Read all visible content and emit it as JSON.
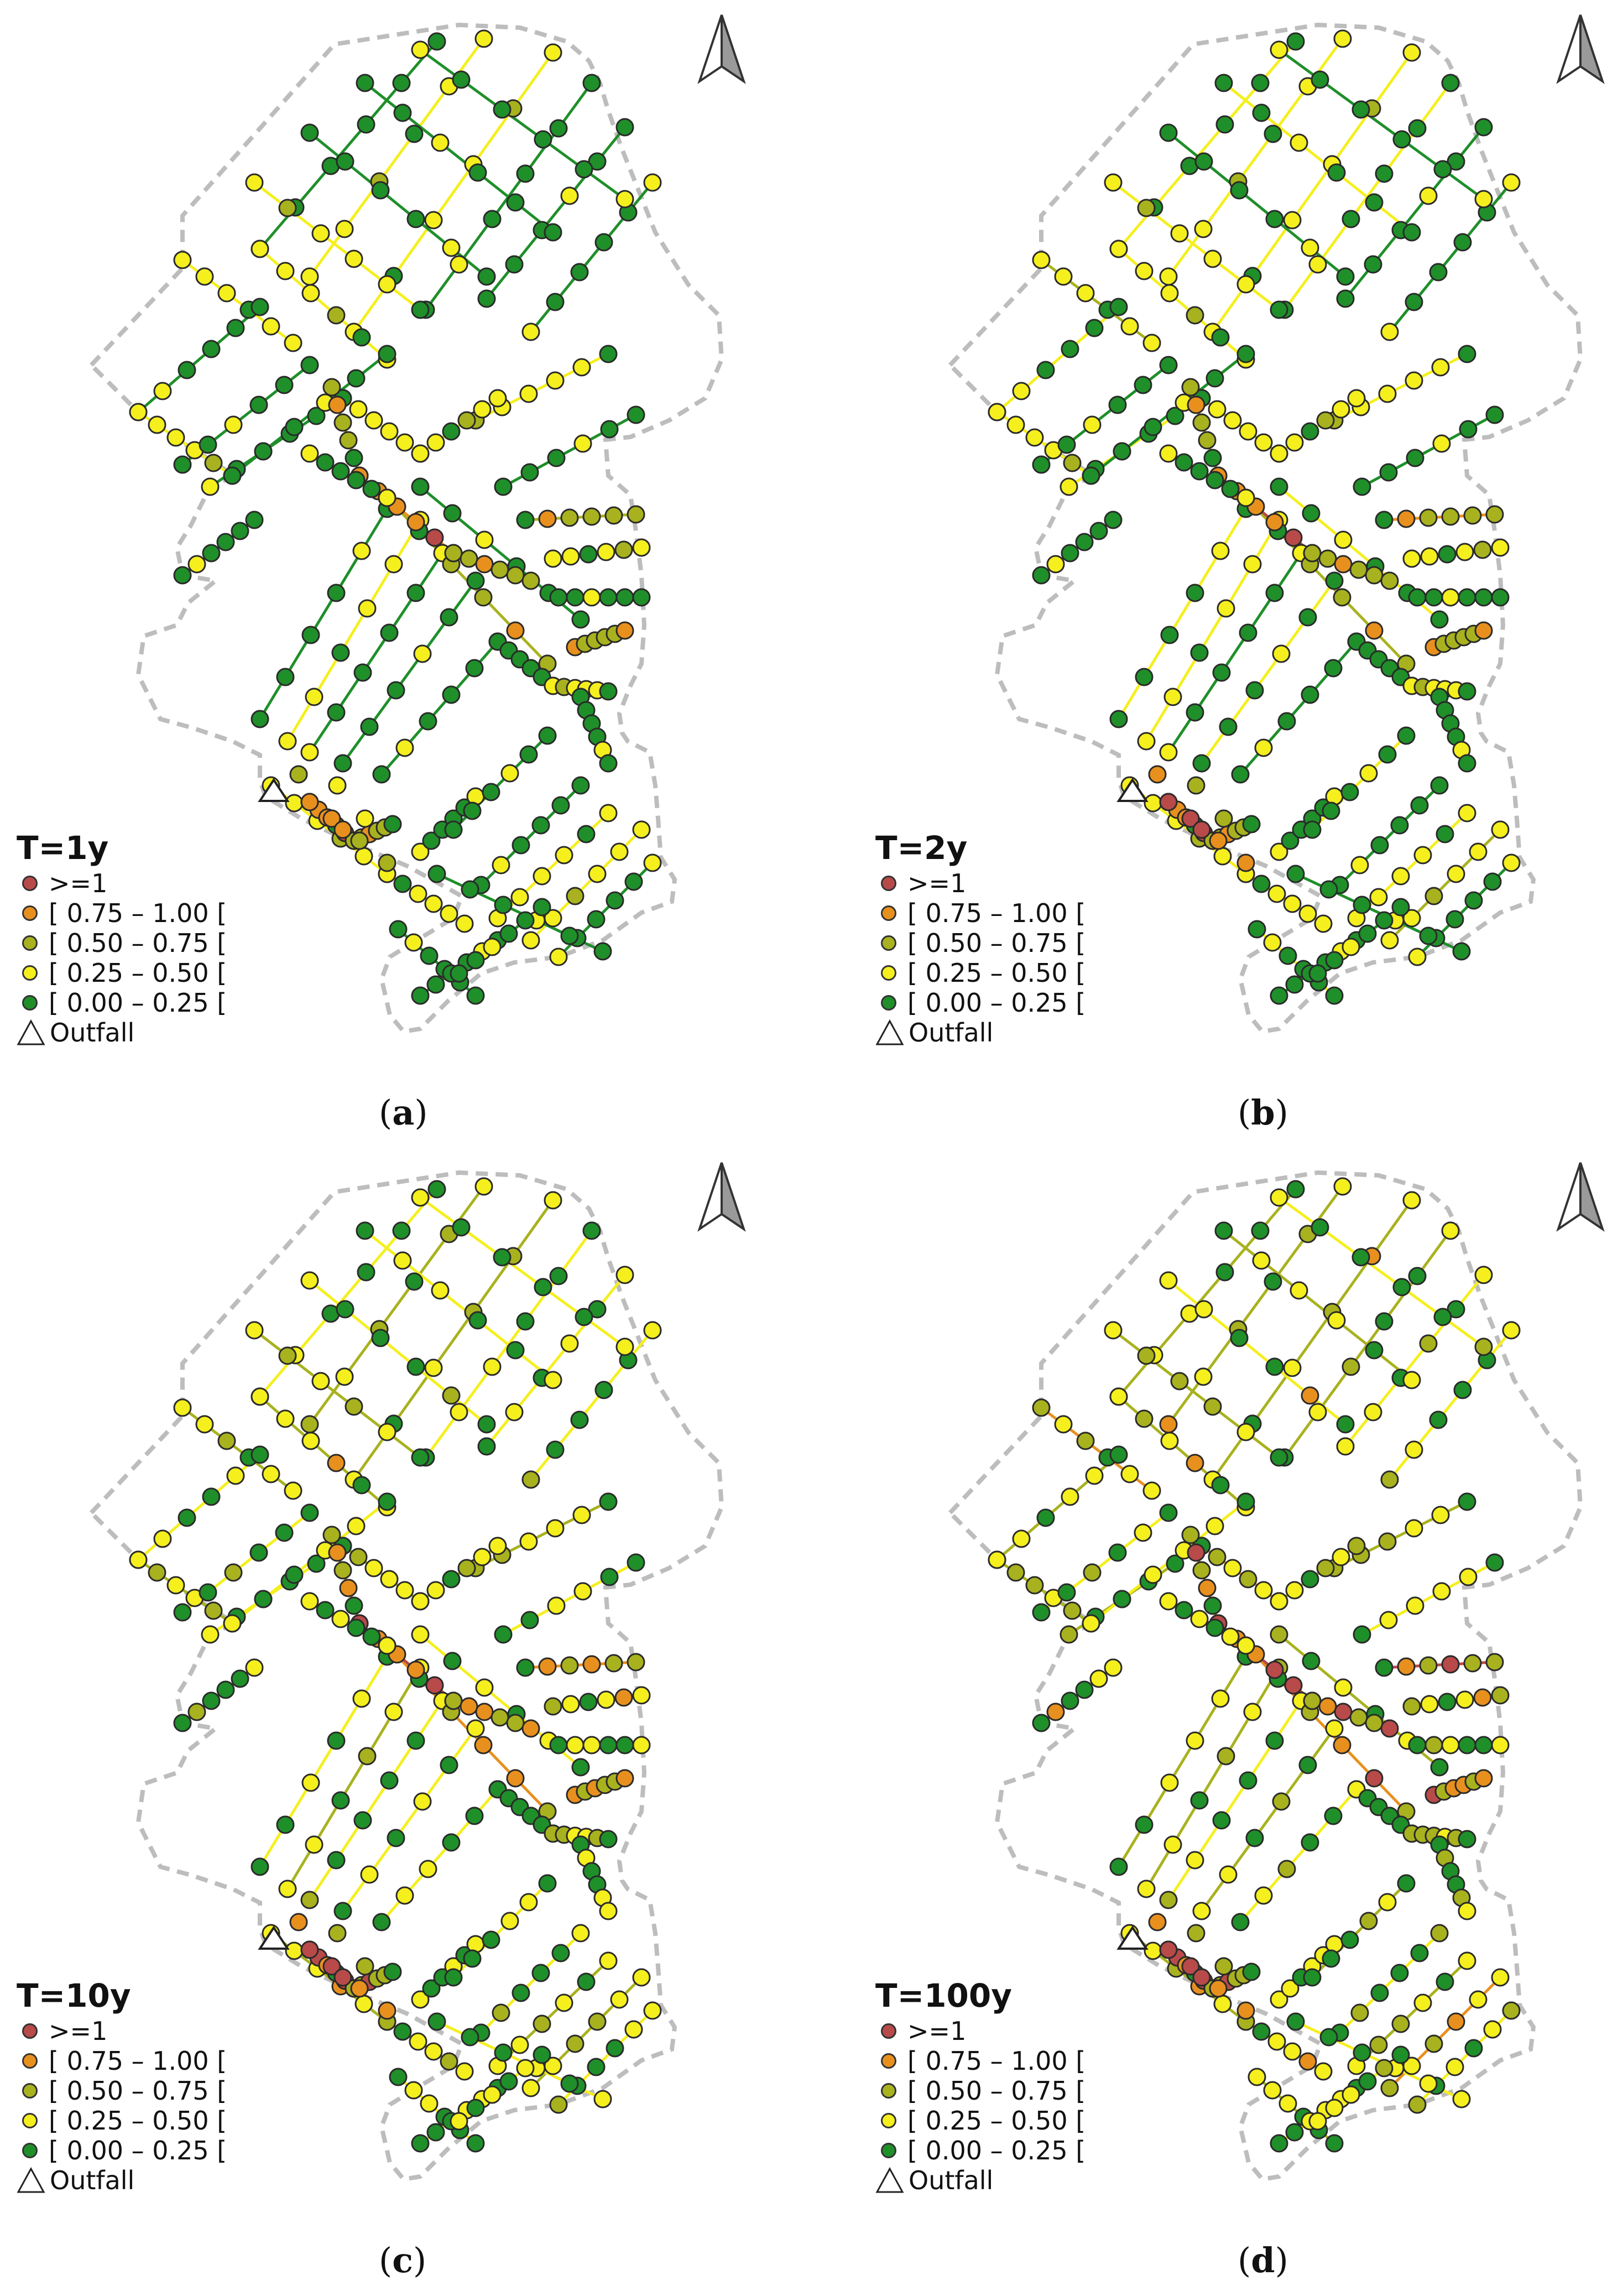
{
  "colors": {
    "ge1": "#b84a4a",
    "c075": "#e8901e",
    "c050": "#a8b21e",
    "c025": "#f5ef1e",
    "c000": "#1f8f2a",
    "boundary": "#bdbdbd"
  },
  "legend_items": [
    {
      "label": ">=1",
      "color_key": "ge1"
    },
    {
      "label": "[ 0.75 – 1.00 [",
      "color_key": "c075"
    },
    {
      "label": "[ 0.50 – 0.75 [",
      "color_key": "c050"
    },
    {
      "label": "[ 0.25 – 0.50 [",
      "color_key": "c025"
    },
    {
      "label": "[ 0.00 – 0.25 [",
      "color_key": "c000"
    }
  ],
  "outfall_label": "Outfall",
  "panels": [
    {
      "title": "T=1y",
      "caption": "a",
      "severity": 0
    },
    {
      "title": "T=2y",
      "caption": "b",
      "severity": 1
    },
    {
      "title": "T=10y",
      "caption": "c",
      "severity": 2
    },
    {
      "title": "T=100y",
      "caption": "d",
      "severity": 3
    }
  ],
  "north_arrow_icon": "north-arrow-icon",
  "outfall_icon": "triangle-icon"
}
